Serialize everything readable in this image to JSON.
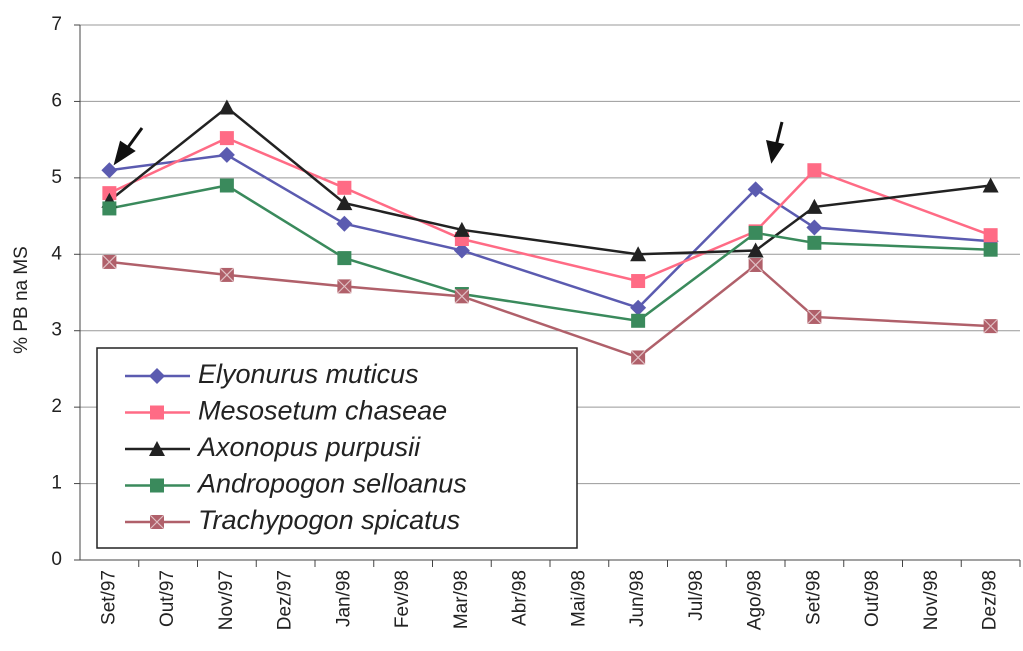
{
  "chart_data": {
    "type": "line",
    "ylabel": "% PB na MS",
    "x": [
      0,
      2,
      4,
      6,
      9,
      11,
      12,
      15
    ],
    "xlim": [
      -0.5,
      15.5
    ],
    "xticks": [
      {
        "value": 0,
        "label": "Set/97"
      },
      {
        "value": 1,
        "label": "Out/97"
      },
      {
        "value": 2,
        "label": "Nov/97"
      },
      {
        "value": 3,
        "label": "Dez/97"
      },
      {
        "value": 4,
        "label": "Jan/98"
      },
      {
        "value": 5,
        "label": "Fev/98"
      },
      {
        "value": 6,
        "label": "Mar/98"
      },
      {
        "value": 7,
        "label": "Abr/98"
      },
      {
        "value": 8,
        "label": "Mai/98"
      },
      {
        "value": 9,
        "label": "Jun/98"
      },
      {
        "value": 10,
        "label": "Jul/98"
      },
      {
        "value": 11,
        "label": "Ago/98"
      },
      {
        "value": 12,
        "label": "Set/98"
      },
      {
        "value": 13,
        "label": "Out/98"
      },
      {
        "value": 14,
        "label": "Nov/98"
      },
      {
        "value": 15,
        "label": "Dez/98"
      }
    ],
    "ylim": [
      0,
      7
    ],
    "yticks": [
      0,
      1,
      2,
      3,
      4,
      5,
      6,
      7
    ],
    "grid": true,
    "legend": "lower left",
    "series": [
      {
        "name": "Elyonurus muticus",
        "color": "#5b5bb0",
        "marker": "diamond",
        "values": [
          5.1,
          5.3,
          4.4,
          4.05,
          3.3,
          4.85,
          4.35,
          4.17
        ]
      },
      {
        "name": "Mesosetum chaseae",
        "color": "#ff6b85",
        "marker": "square",
        "values": [
          4.8,
          5.52,
          4.87,
          4.2,
          3.65,
          4.3,
          5.1,
          4.25
        ]
      },
      {
        "name": "Axonopus purpusii",
        "color": "#222222",
        "marker": "triangle",
        "values": [
          4.7,
          5.92,
          4.67,
          4.32,
          4.0,
          4.05,
          4.62,
          4.9
        ]
      },
      {
        "name": "Andropogon selloanus",
        "color": "#3a8a5c",
        "marker": "square",
        "values": [
          4.6,
          4.9,
          3.95,
          3.48,
          3.13,
          4.28,
          4.15,
          4.06
        ]
      },
      {
        "name": "Trachypogon spicatus",
        "color": "#b0606a",
        "marker": "star-square",
        "values": [
          3.9,
          3.73,
          3.58,
          3.45,
          2.65,
          3.86,
          3.18,
          3.06
        ]
      }
    ]
  }
}
